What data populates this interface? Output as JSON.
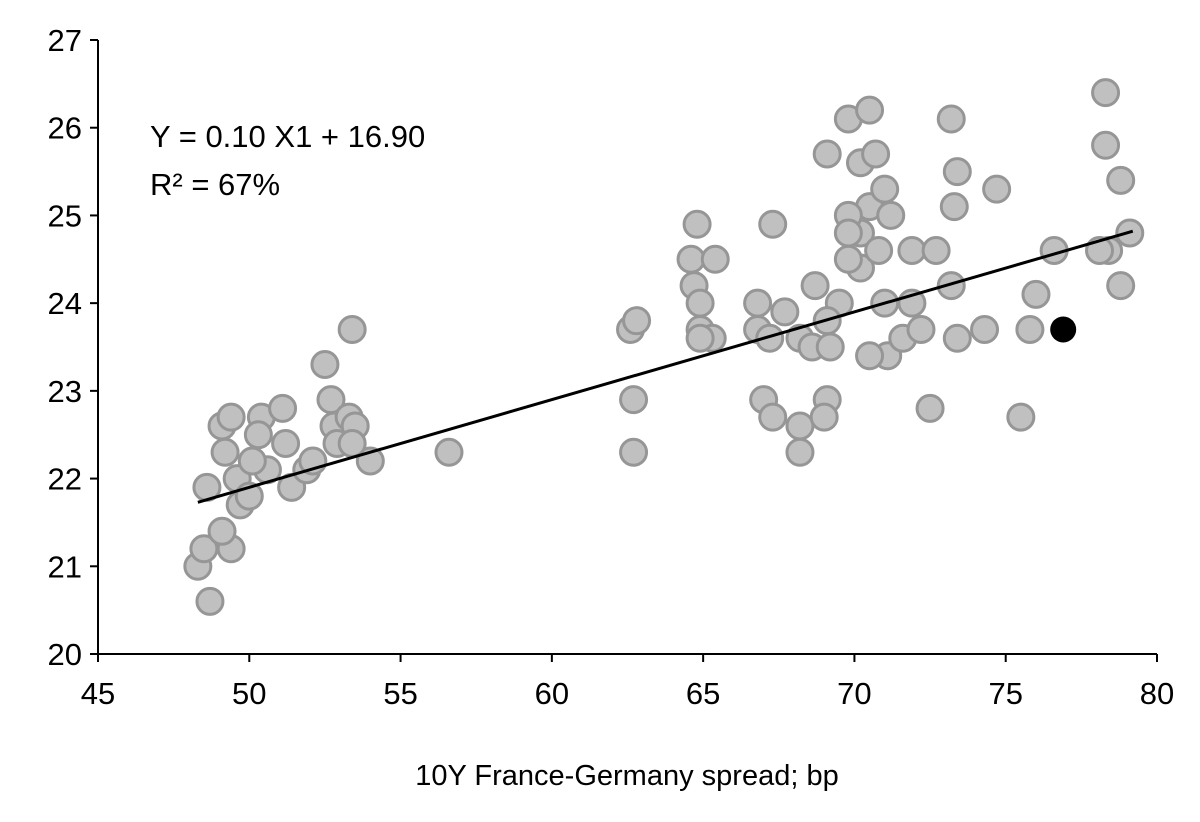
{
  "chart_data": {
    "type": "scatter",
    "title": "",
    "xlabel": "10Y France-Germany spread; bp",
    "ylabel": "",
    "xlim": [
      45,
      80
    ],
    "ylim": [
      20,
      27
    ],
    "xticks": [
      "45",
      "50",
      "55",
      "60",
      "65",
      "70",
      "75",
      "80"
    ],
    "yticks": [
      "20",
      "21",
      "22",
      "23",
      "24",
      "25",
      "26",
      "27"
    ],
    "grid": false,
    "annotation": {
      "equation": "Y = 0.10 X1 + 16.90",
      "r2": "R² = 67%"
    },
    "trendline": {
      "slope": 0.1,
      "intercept": 16.9,
      "x_range": [
        48.3,
        79.2
      ]
    },
    "colors": {
      "points": "#c0c0c0",
      "point_edge": "#969696",
      "highlight": "#000000",
      "line": "#000000"
    },
    "highlight_point": {
      "x": 76.9,
      "y": 23.7
    },
    "points": [
      [
        48.3,
        21.0
      ],
      [
        48.5,
        21.2
      ],
      [
        48.7,
        20.6
      ],
      [
        48.6,
        21.9
      ],
      [
        49.1,
        22.6
      ],
      [
        49.4,
        22.7
      ],
      [
        49.2,
        22.3
      ],
      [
        49.4,
        21.2
      ],
      [
        49.1,
        21.4
      ],
      [
        49.7,
        21.7
      ],
      [
        49.6,
        22.0
      ],
      [
        50.0,
        21.8
      ],
      [
        50.4,
        22.7
      ],
      [
        50.3,
        22.5
      ],
      [
        50.6,
        22.1
      ],
      [
        50.1,
        22.2
      ],
      [
        51.1,
        22.8
      ],
      [
        51.2,
        22.4
      ],
      [
        51.4,
        21.9
      ],
      [
        51.9,
        22.1
      ],
      [
        52.5,
        23.3
      ],
      [
        52.7,
        22.9
      ],
      [
        52.8,
        22.6
      ],
      [
        52.9,
        22.4
      ],
      [
        53.3,
        22.7
      ],
      [
        53.5,
        22.6
      ],
      [
        53.4,
        23.7
      ],
      [
        54.0,
        22.2
      ],
      [
        56.6,
        22.3
      ],
      [
        53.4,
        22.4
      ],
      [
        52.1,
        22.2
      ],
      [
        62.6,
        23.7
      ],
      [
        62.8,
        23.8
      ],
      [
        62.7,
        22.9
      ],
      [
        62.7,
        22.3
      ],
      [
        64.6,
        24.5
      ],
      [
        64.8,
        24.9
      ],
      [
        64.7,
        24.2
      ],
      [
        64.9,
        24.0
      ],
      [
        65.4,
        24.5
      ],
      [
        64.9,
        23.7
      ],
      [
        65.3,
        23.6
      ],
      [
        64.9,
        23.6
      ],
      [
        66.8,
        23.7
      ],
      [
        67.0,
        22.9
      ],
      [
        67.3,
        22.7
      ],
      [
        67.3,
        24.9
      ],
      [
        67.2,
        23.6
      ],
      [
        66.8,
        24.0
      ],
      [
        67.7,
        23.9
      ],
      [
        68.2,
        23.6
      ],
      [
        68.6,
        23.5
      ],
      [
        68.2,
        22.3
      ],
      [
        68.2,
        22.6
      ],
      [
        69.1,
        25.7
      ],
      [
        69.8,
        26.1
      ],
      [
        70.5,
        26.2
      ],
      [
        70.2,
        25.6
      ],
      [
        70.7,
        25.7
      ],
      [
        70.5,
        25.1
      ],
      [
        71.0,
        25.3
      ],
      [
        71.2,
        25.0
      ],
      [
        70.2,
        24.8
      ],
      [
        69.8,
        25.0
      ],
      [
        70.2,
        24.4
      ],
      [
        70.8,
        24.6
      ],
      [
        69.8,
        24.5
      ],
      [
        69.5,
        24.0
      ],
      [
        69.1,
        23.8
      ],
      [
        69.2,
        23.5
      ],
      [
        69.1,
        22.9
      ],
      [
        69.0,
        22.7
      ],
      [
        68.7,
        24.2
      ],
      [
        71.0,
        24.0
      ],
      [
        71.1,
        23.4
      ],
      [
        70.5,
        23.4
      ],
      [
        69.8,
        24.8
      ],
      [
        72.5,
        22.8
      ],
      [
        71.9,
        24.6
      ],
      [
        72.7,
        24.6
      ],
      [
        71.9,
        24.0
      ],
      [
        71.6,
        23.6
      ],
      [
        72.2,
        23.7
      ],
      [
        73.2,
        26.1
      ],
      [
        73.3,
        25.1
      ],
      [
        73.4,
        25.5
      ],
      [
        73.2,
        24.2
      ],
      [
        73.4,
        23.6
      ],
      [
        74.3,
        23.7
      ],
      [
        74.7,
        25.3
      ],
      [
        75.5,
        22.7
      ],
      [
        75.8,
        23.7
      ],
      [
        76.0,
        24.1
      ],
      [
        76.6,
        24.6
      ],
      [
        78.4,
        24.6
      ],
      [
        78.1,
        24.6
      ],
      [
        78.3,
        26.4
      ],
      [
        78.3,
        25.8
      ],
      [
        78.8,
        25.4
      ],
      [
        79.1,
        24.8
      ],
      [
        78.8,
        24.2
      ]
    ]
  }
}
